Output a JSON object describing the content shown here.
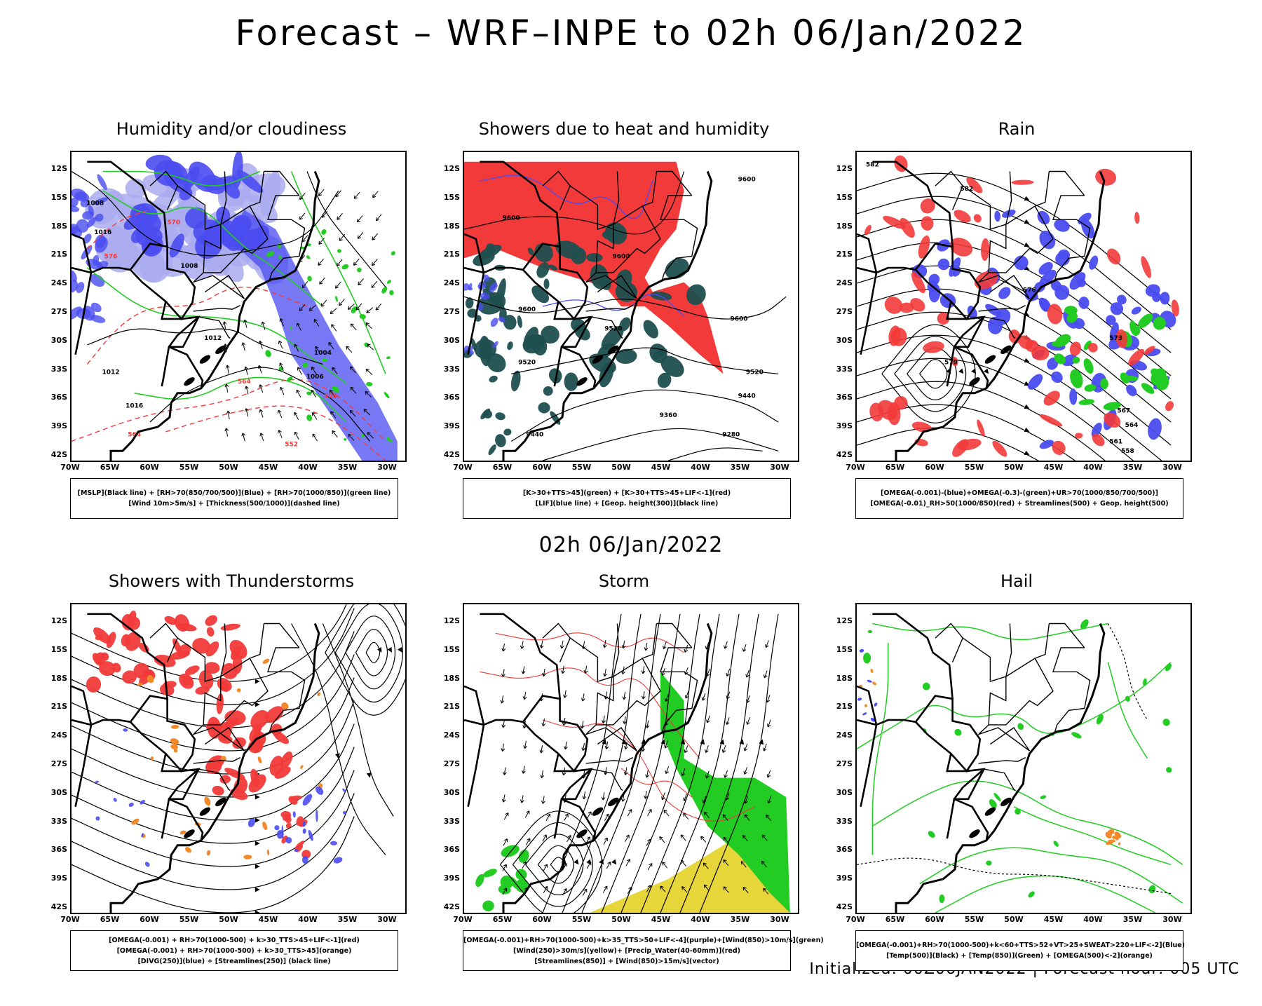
{
  "title": "Forecast – WRF–INPE to 02h 06/Jan/2022",
  "subtitle": "02h 06/Jan/2022",
  "footer": "Initialized: 00Z06JAN2022 | Forecast hour: 005 UTC",
  "axes": {
    "lat_labels": [
      "12S",
      "15S",
      "18S",
      "21S",
      "24S",
      "27S",
      "30S",
      "33S",
      "36S",
      "39S",
      "42S"
    ],
    "lon_labels": [
      "70W",
      "65W",
      "60W",
      "55W",
      "50W",
      "45W",
      "40W",
      "35W",
      "30W"
    ]
  },
  "colors": {
    "blue": "#4a4cf0",
    "light_blue": "#aaaaf0",
    "green": "#22cc22",
    "red": "#f23a3a",
    "dark_teal": "#1f4f4f",
    "orange": "#f08a2a",
    "yellow": "#e6d63a",
    "purple": "#9a3ad0"
  },
  "panels": [
    {
      "title": "Humidity and/or cloudiness",
      "legend": [
        "[MSLP](Black line) + [RH>70(850/700/500)](Blue) + [RH>70(1000/850)](green line)",
        "[Wind 10m>5m/s] + [Thickness(500/1000)](dashed line)"
      ],
      "contour_labels": [
        "1008",
        "1012",
        "1016",
        "1004",
        "1006",
        "570",
        "576",
        "564",
        "558",
        "552"
      ]
    },
    {
      "title": "Showers due to heat and humidity",
      "legend": [
        "[K>30+TTS>45](green) + [K>30+TTS>45+LIF<-1](red)",
        "[LIF](blue line) + [Geop. height(300)](black line)"
      ],
      "contour_labels": [
        "9600",
        "9520",
        "9440",
        "9360",
        "9280"
      ]
    },
    {
      "title": "Rain",
      "legend": [
        "[OMEGA(-0.001)-(blue)+OMEGA(-0.3)-(green)+UR>70(1000/850/700/500)]",
        "[OMEGA(-0.01)_RH>50(1000/850)(red) + Streamlines(500) + Geop. height(500)"
      ],
      "contour_labels": [
        "582",
        "579",
        "576",
        "573",
        "567",
        "564",
        "561",
        "558"
      ]
    },
    {
      "title": "Showers with Thunderstorms",
      "legend": [
        "[OMEGA(-0.001) + RH>70(1000-500) + k>30_TTS>45+LIF<-1](red)",
        "[OMEGA(-0.001) + RH>70(1000-500) + k>30_TTS>45](orange)",
        "[DIVG(250)](blue) + [Streamlines(250)] (black line)"
      ],
      "contour_labels": []
    },
    {
      "title": "Storm",
      "legend": [
        "[OMEGA(-0.001)+RH>70(1000-500)+k>35_TTS>50+LIF<-4](purple)+[Wind(850)>10m/s](green)",
        "[Wind(250)>30m/s](yellow)+ [Precip_Water(40-60mm)](red)",
        "[Streamlines(850)] + [Wind(850)>15m/s](vector)"
      ],
      "contour_labels": []
    },
    {
      "title": "Hail",
      "legend": [
        "[OMEGA(-0.001)+RH>70(1000-500)+k<60+TTS>52+VT>25+SWEAT>220+LIF<-2](Blue)",
        "[Temp(500)](Black) + [Temp(850)](Green) + [OMEGA(500)<-2](orange)"
      ],
      "contour_labels": []
    }
  ]
}
